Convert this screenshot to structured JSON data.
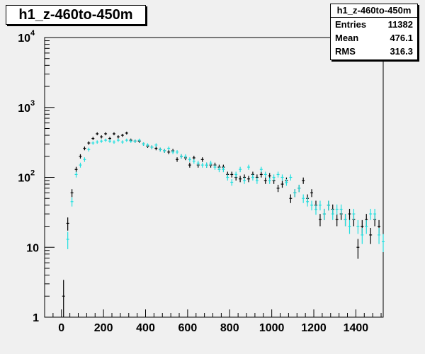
{
  "chart_data": {
    "type": "scatter",
    "title": "h1_z-460to-450m",
    "xlabel": "",
    "ylabel": "",
    "xlim": [
      -80,
      1530
    ],
    "ylim": [
      1,
      10000
    ],
    "yscale": "log",
    "grid": false,
    "stats": {
      "title": "h1_z-460to-450m",
      "entries_label": "Entries",
      "entries": "11382",
      "mean_label": "Mean",
      "mean": "476.1",
      "rms_label": "RMS",
      "rms": "316.3"
    },
    "x_ticks": [
      0,
      200,
      400,
      600,
      800,
      1000,
      1200,
      1400
    ],
    "y_ticks": [
      {
        "value": 1,
        "label": "1"
      },
      {
        "value": 10,
        "label": "10"
      },
      {
        "value": 100,
        "label": "10",
        "exp": "2"
      },
      {
        "value": 1000,
        "label": "10",
        "exp": "3"
      },
      {
        "value": 10000,
        "label": "10",
        "exp": "4"
      }
    ],
    "bin_width": 20,
    "series": [
      {
        "color": "#000000",
        "x": [
          10,
          30,
          50,
          70,
          90,
          110,
          130,
          150,
          170,
          190,
          210,
          230,
          250,
          270,
          290,
          310,
          330,
          350,
          370,
          390,
          410,
          430,
          450,
          470,
          490,
          510,
          530,
          550,
          570,
          590,
          610,
          630,
          650,
          670,
          690,
          710,
          730,
          750,
          770,
          790,
          810,
          830,
          850,
          870,
          890,
          910,
          930,
          950,
          970,
          990,
          1010,
          1030,
          1050,
          1070,
          1090,
          1110,
          1130,
          1150,
          1170,
          1190,
          1210,
          1230,
          1250,
          1270,
          1290,
          1310,
          1330,
          1350,
          1370,
          1390,
          1410,
          1430,
          1450,
          1470,
          1490,
          1510
        ],
        "y": [
          2,
          22,
          60,
          130,
          200,
          260,
          310,
          360,
          420,
          380,
          420,
          360,
          420,
          380,
          400,
          430,
          340,
          330,
          330,
          300,
          280,
          270,
          260,
          250,
          240,
          230,
          240,
          180,
          200,
          190,
          150,
          190,
          150,
          180,
          150,
          150,
          150,
          140,
          140,
          110,
          110,
          100,
          95,
          100,
          95,
          110,
          100,
          110,
          90,
          105,
          90,
          70,
          80,
          90,
          50,
          60,
          70,
          90,
          50,
          60,
          40,
          25,
          30,
          40,
          35,
          25,
          30,
          25,
          30,
          25,
          10,
          20,
          25,
          15,
          25,
          20
        ]
      },
      {
        "color": "#22e0e0",
        "x": [
          30,
          50,
          70,
          90,
          110,
          130,
          150,
          170,
          190,
          210,
          230,
          250,
          270,
          290,
          310,
          330,
          350,
          370,
          390,
          410,
          430,
          450,
          470,
          490,
          510,
          530,
          550,
          570,
          590,
          610,
          630,
          650,
          670,
          690,
          710,
          730,
          750,
          770,
          790,
          810,
          830,
          850,
          870,
          890,
          910,
          930,
          950,
          970,
          990,
          1010,
          1030,
          1050,
          1070,
          1090,
          1110,
          1130,
          1150,
          1170,
          1190,
          1210,
          1230,
          1250,
          1270,
          1290,
          1310,
          1330,
          1350,
          1370,
          1390,
          1410,
          1430,
          1450,
          1470,
          1490,
          1510,
          1530
        ],
        "y": [
          13,
          45,
          110,
          150,
          180,
          250,
          310,
          320,
          330,
          340,
          330,
          320,
          340,
          320,
          340,
          330,
          330,
          340,
          300,
          290,
          270,
          290,
          250,
          240,
          260,
          230,
          230,
          200,
          200,
          180,
          170,
          160,
          150,
          150,
          160,
          140,
          130,
          130,
          100,
          85,
          110,
          130,
          90,
          140,
          100,
          90,
          130,
          110,
          90,
          100,
          110,
          100,
          85,
          100,
          60,
          70,
          50,
          45,
          40,
          35,
          40,
          30,
          40,
          30,
          35,
          35,
          25,
          20,
          30,
          20,
          15,
          20,
          30,
          30,
          15,
          12
        ]
      }
    ]
  }
}
